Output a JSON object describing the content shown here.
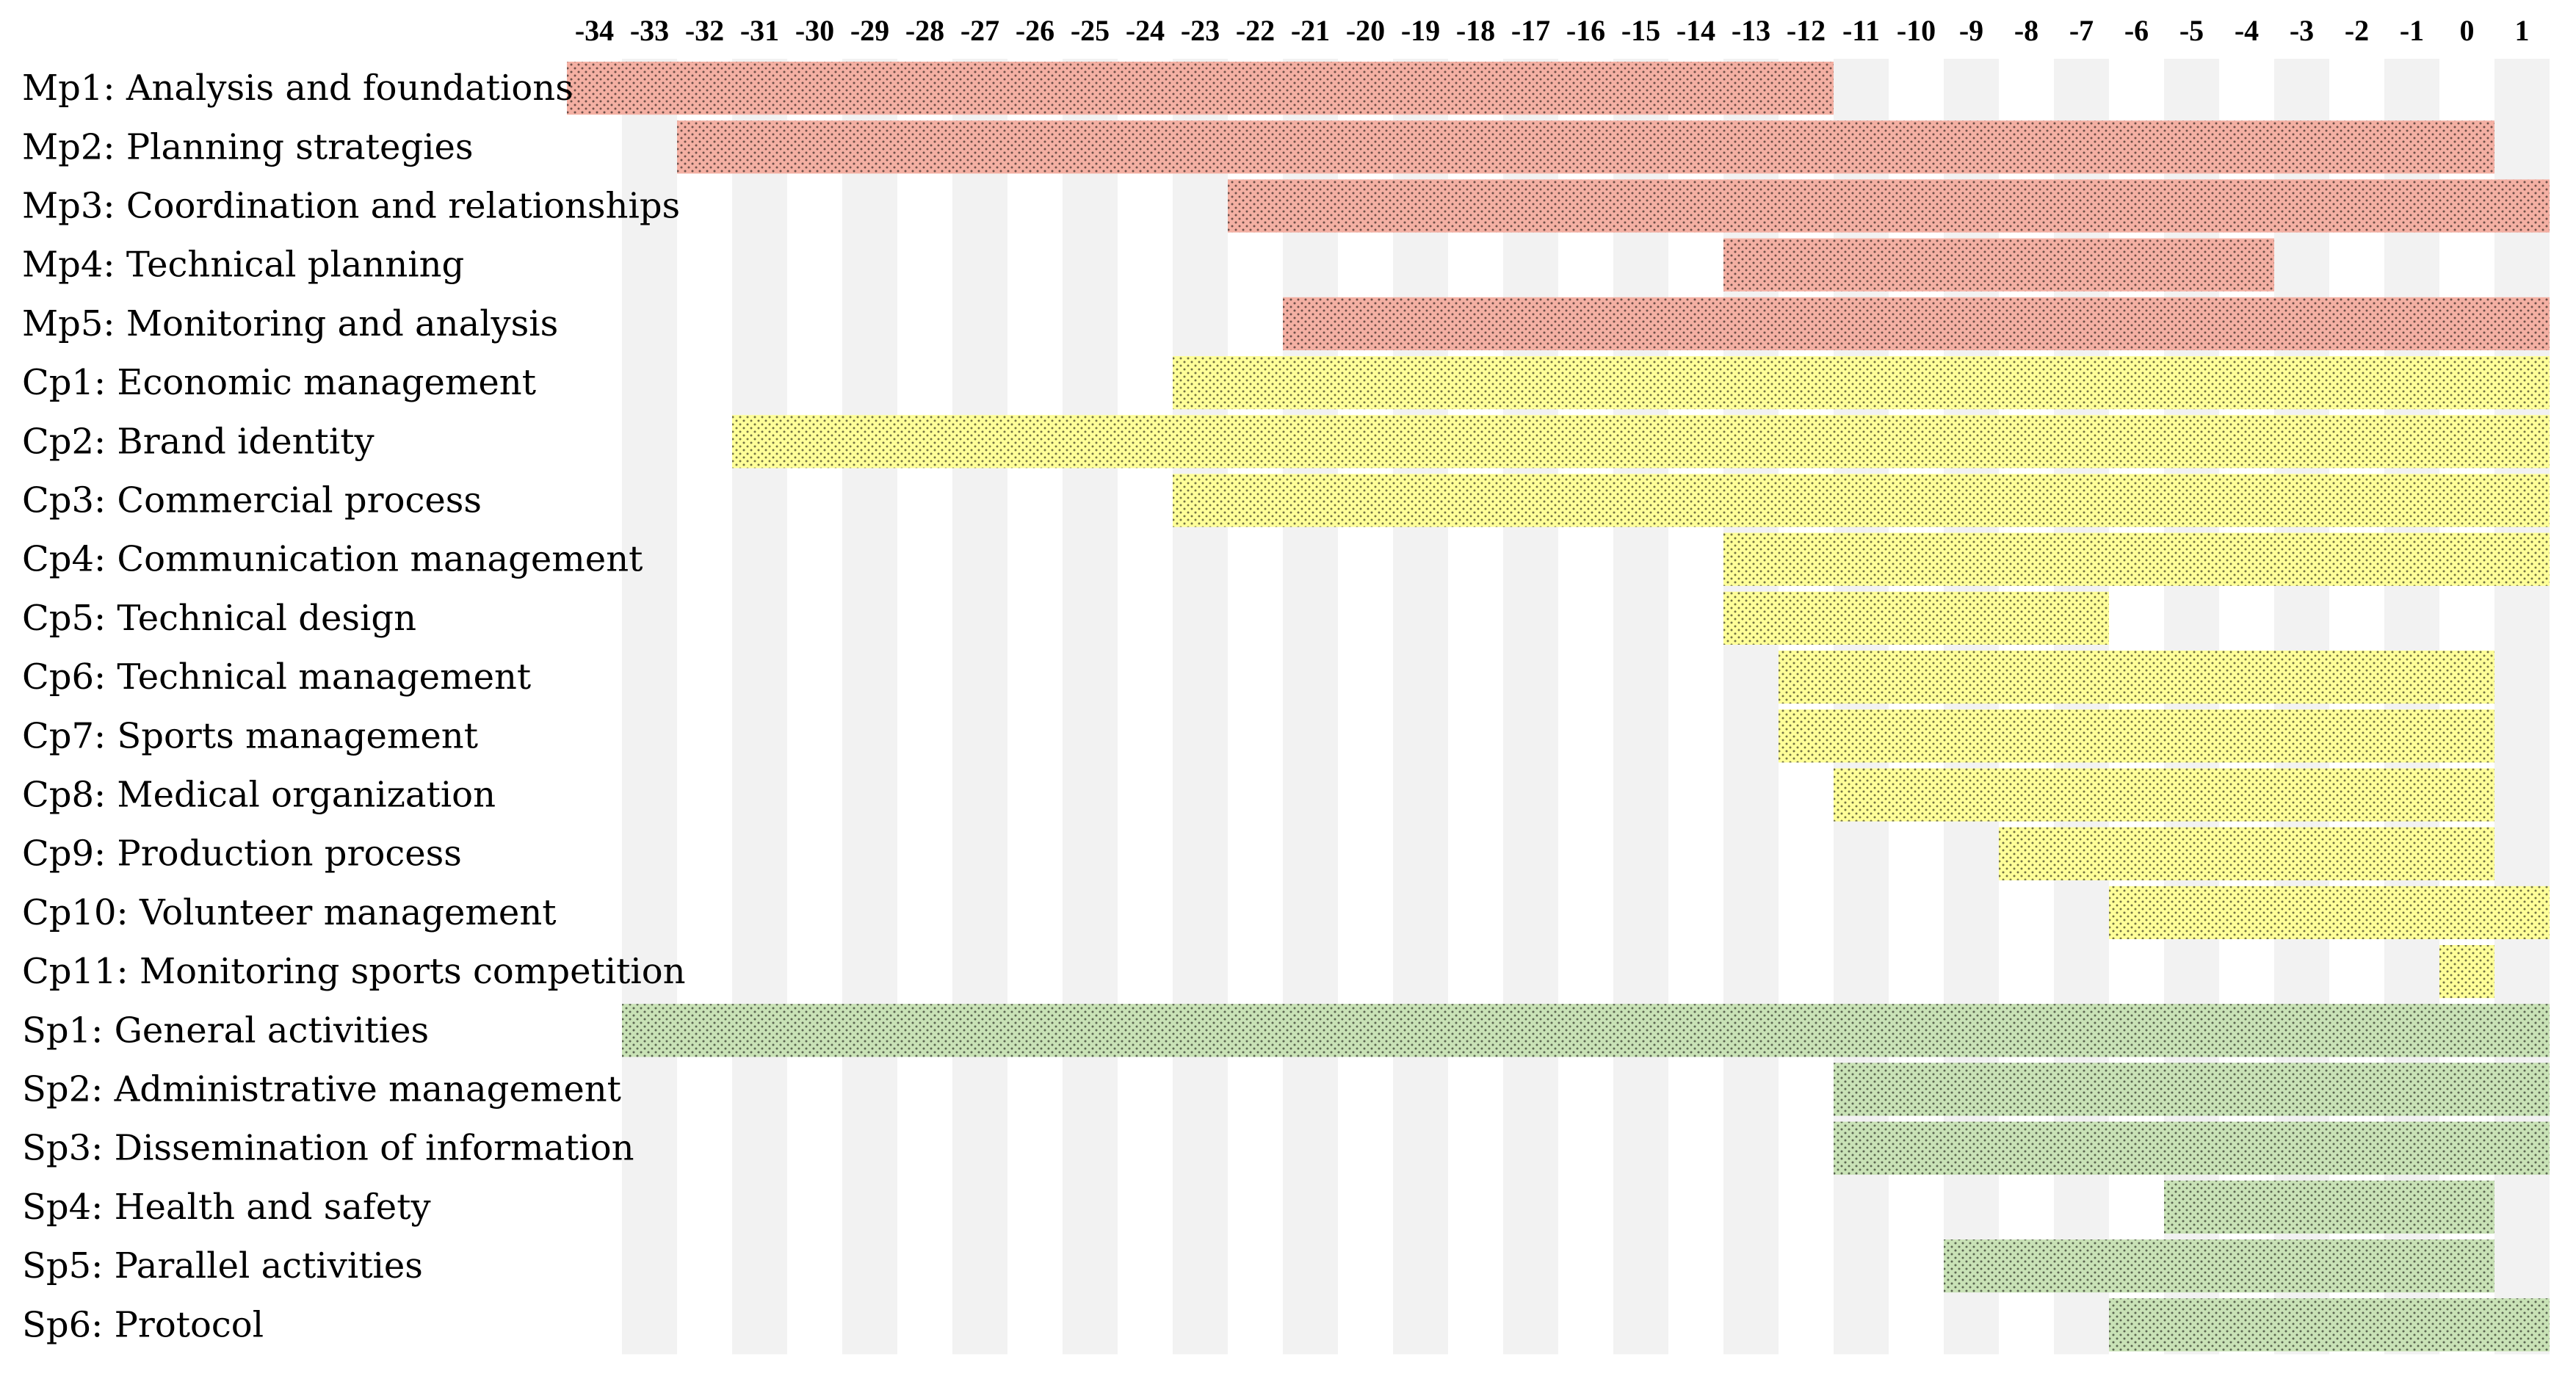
{
  "chart_data": {
    "type": "gantt",
    "title": "",
    "xlabel": "",
    "ylabel": "",
    "x_ticks": [
      -34,
      -33,
      -32,
      -31,
      -30,
      -29,
      -28,
      -27,
      -26,
      -25,
      -24,
      -23,
      -22,
      -21,
      -20,
      -19,
      -18,
      -17,
      -16,
      -15,
      -14,
      -13,
      -12,
      -11,
      -10,
      -9,
      -8,
      -7,
      -6,
      -5,
      -4,
      -3,
      -2,
      -1,
      0,
      1
    ],
    "xlim": [
      -34,
      1
    ],
    "grid": "alternating column shading",
    "groups": [
      {
        "key": "Mp",
        "color": "#f4b0a3"
      },
      {
        "key": "Cp",
        "color": "#ffff99"
      },
      {
        "key": "Sp",
        "color": "#c9e2b6"
      }
    ],
    "tasks": [
      {
        "label": "Mp1: Analysis and foundations",
        "group": "Mp",
        "start": -34,
        "end": -12
      },
      {
        "label": "Mp2: Planning strategies",
        "group": "Mp",
        "start": -32,
        "end": 0
      },
      {
        "label": "Mp3: Coordination and relationships",
        "group": "Mp",
        "start": -22,
        "end": 1
      },
      {
        "label": "Mp4: Technical planning",
        "group": "Mp",
        "start": -13,
        "end": -4
      },
      {
        "label": "Mp5: Monitoring and analysis",
        "group": "Mp",
        "start": -21,
        "end": 1
      },
      {
        "label": "Cp1: Economic management",
        "group": "Cp",
        "start": -23,
        "end": 1
      },
      {
        "label": "Cp2: Brand identity",
        "group": "Cp",
        "start": -31,
        "end": 1
      },
      {
        "label": "Cp3: Commercial process",
        "group": "Cp",
        "start": -23,
        "end": 1
      },
      {
        "label": "Cp4: Communication management",
        "group": "Cp",
        "start": -13,
        "end": 1
      },
      {
        "label": "Cp5: Technical design",
        "group": "Cp",
        "start": -13,
        "end": -7
      },
      {
        "label": "Cp6: Technical management",
        "group": "Cp",
        "start": -12,
        "end": 0
      },
      {
        "label": "Cp7: Sports management",
        "group": "Cp",
        "start": -12,
        "end": 0
      },
      {
        "label": "Cp8: Medical organization",
        "group": "Cp",
        "start": -11,
        "end": 0
      },
      {
        "label": "Cp9: Production process",
        "group": "Cp",
        "start": -8,
        "end": 0
      },
      {
        "label": "Cp10: Volunteer management",
        "group": "Cp",
        "start": -6,
        "end": 1
      },
      {
        "label": "Cp11: Monitoring sports competition",
        "group": "Cp",
        "start": 0,
        "end": 0
      },
      {
        "label": "Sp1: General activities",
        "group": "Sp",
        "start": -33,
        "end": 1
      },
      {
        "label": "Sp2: Administrative management",
        "group": "Sp",
        "start": -11,
        "end": 1
      },
      {
        "label": "Sp3: Dissemination of information",
        "group": "Sp",
        "start": -11,
        "end": 1
      },
      {
        "label": "Sp4: Health and safety",
        "group": "Sp",
        "start": -5,
        "end": 0
      },
      {
        "label": "Sp5: Parallel activities",
        "group": "Sp",
        "start": -9,
        "end": 0
      },
      {
        "label": "Sp6: Protocol",
        "group": "Sp",
        "start": -6,
        "end": 1
      }
    ]
  }
}
